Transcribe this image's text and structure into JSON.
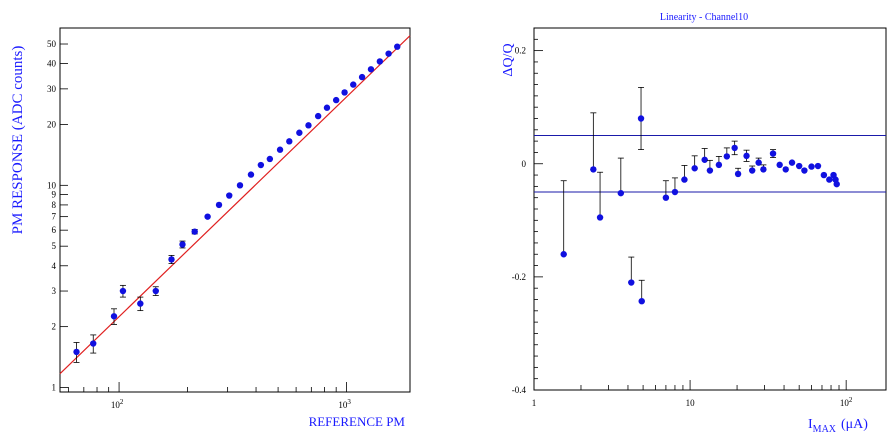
{
  "chart_data": [
    {
      "type": "scatter",
      "title": "",
      "xlabel": "REFERENCE PM",
      "ylabel": "PM RESPONSE (ADC counts)",
      "xscale": "log",
      "yscale": "log",
      "xlim": [
        55,
        1900
      ],
      "ylim": [
        0.95,
        60
      ],
      "grid": false,
      "fit_line": {
        "color": "#e02020",
        "x": [
          55,
          1900
        ],
        "y": [
          1.17,
          55.0
        ]
      },
      "x_ticks": [
        {
          "value": 100,
          "label": "10",
          "exp": "2"
        },
        {
          "value": 1000,
          "label": "10",
          "exp": "3"
        }
      ],
      "y_ticks": [
        1,
        2,
        3,
        4,
        5,
        6,
        7,
        8,
        9,
        10,
        20,
        30,
        40,
        50
      ],
      "series": [
        {
          "marker_color": "#1010e0",
          "points": [
            {
              "x": 65,
              "y": 1.5,
              "err": 0.17
            },
            {
              "x": 77,
              "y": 1.65,
              "err": 0.17
            },
            {
              "x": 95,
              "y": 2.25,
              "err": 0.2
            },
            {
              "x": 104,
              "y": 3.0,
              "err": 0.2
            },
            {
              "x": 124,
              "y": 2.6,
              "err": 0.2
            },
            {
              "x": 145,
              "y": 3.0,
              "err": 0.15
            },
            {
              "x": 170,
              "y": 4.3,
              "err": 0.2
            },
            {
              "x": 190,
              "y": 5.1,
              "err": 0.2
            },
            {
              "x": 215,
              "y": 5.9,
              "err": 0.15
            },
            {
              "x": 245,
              "y": 7.0,
              "err": 0
            },
            {
              "x": 275,
              "y": 8.0,
              "err": 0
            },
            {
              "x": 305,
              "y": 8.9,
              "err": 0
            },
            {
              "x": 340,
              "y": 10.0,
              "err": 0
            },
            {
              "x": 380,
              "y": 11.3,
              "err": 0
            },
            {
              "x": 420,
              "y": 12.6,
              "err": 0
            },
            {
              "x": 460,
              "y": 13.5,
              "err": 0
            },
            {
              "x": 510,
              "y": 15.0,
              "err": 0
            },
            {
              "x": 560,
              "y": 16.5,
              "err": 0
            },
            {
              "x": 620,
              "y": 18.2,
              "err": 0
            },
            {
              "x": 680,
              "y": 19.8,
              "err": 0
            },
            {
              "x": 750,
              "y": 22.0,
              "err": 0
            },
            {
              "x": 820,
              "y": 24.2,
              "err": 0
            },
            {
              "x": 900,
              "y": 26.4,
              "err": 0
            },
            {
              "x": 980,
              "y": 28.8,
              "err": 0
            },
            {
              "x": 1070,
              "y": 31.5,
              "err": 0
            },
            {
              "x": 1170,
              "y": 34.3,
              "err": 0
            },
            {
              "x": 1280,
              "y": 37.5,
              "err": 0
            },
            {
              "x": 1400,
              "y": 41.0,
              "err": 0
            },
            {
              "x": 1530,
              "y": 44.8,
              "err": 0
            },
            {
              "x": 1670,
              "y": 48.5,
              "err": 0
            }
          ]
        }
      ]
    },
    {
      "type": "scatter",
      "title": "Linearity - Channel10",
      "xlabel": "I",
      "xlabel_sub": "MAX",
      "xlabel_unit": "(μA)",
      "ylabel": "ΔQ/Q",
      "xscale": "log",
      "yscale": "linear",
      "xlim": [
        1,
        180
      ],
      "ylim": [
        -0.4,
        0.24
      ],
      "grid": false,
      "reference_lines": [
        0.05,
        -0.05
      ],
      "x_ticks": [
        {
          "value": 1,
          "label": "1",
          "exp": ""
        },
        {
          "value": 10,
          "label": "10",
          "exp": ""
        },
        {
          "value": 100,
          "label": "10",
          "exp": "2"
        }
      ],
      "y_ticks": [
        {
          "value": 0.2,
          "label": "0.2"
        },
        {
          "value": 0,
          "label": "0"
        },
        {
          "value": -0.2,
          "label": "-0.2"
        },
        {
          "value": -0.4,
          "label": "-0.4"
        }
      ],
      "series": [
        {
          "marker_color": "#1010e0",
          "points": [
            {
              "x": 1.55,
              "y": -0.16,
              "err": 0.13
            },
            {
              "x": 2.4,
              "y": -0.01,
              "err": 0.1
            },
            {
              "x": 2.65,
              "y": -0.095,
              "err": 0.08
            },
            {
              "x": 3.6,
              "y": -0.052,
              "err": 0.062
            },
            {
              "x": 4.2,
              "y": -0.21,
              "err": 0.045
            },
            {
              "x": 4.85,
              "y": 0.08,
              "err": 0.055
            },
            {
              "x": 4.9,
              "y": -0.243,
              "err": 0.037
            },
            {
              "x": 7.0,
              "y": -0.06,
              "err": 0.03
            },
            {
              "x": 8.0,
              "y": -0.05,
              "err": 0.025
            },
            {
              "x": 9.2,
              "y": -0.028,
              "err": 0.025
            },
            {
              "x": 10.7,
              "y": -0.008,
              "err": 0.022
            },
            {
              "x": 12.4,
              "y": 0.007,
              "err": 0.02
            },
            {
              "x": 13.4,
              "y": -0.012,
              "err": 0.018
            },
            {
              "x": 15.3,
              "y": -0.002,
              "err": 0.015
            },
            {
              "x": 17.2,
              "y": 0.013,
              "err": 0.015
            },
            {
              "x": 19.3,
              "y": 0.028,
              "err": 0.012
            },
            {
              "x": 20.3,
              "y": -0.018,
              "err": 0.01
            },
            {
              "x": 23.0,
              "y": 0.014,
              "err": 0.01
            },
            {
              "x": 25.0,
              "y": -0.012,
              "err": 0.008
            },
            {
              "x": 27.5,
              "y": 0.002,
              "err": 0.008
            },
            {
              "x": 29.5,
              "y": -0.01,
              "err": 0.008
            },
            {
              "x": 34.0,
              "y": 0.018,
              "err": 0.007
            },
            {
              "x": 37.5,
              "y": -0.002,
              "err": 0
            },
            {
              "x": 41.0,
              "y": -0.01,
              "err": 0
            },
            {
              "x": 45.0,
              "y": 0.002,
              "err": 0
            },
            {
              "x": 50.0,
              "y": -0.004,
              "err": 0
            },
            {
              "x": 54.0,
              "y": -0.012,
              "err": 0
            },
            {
              "x": 60.0,
              "y": -0.005,
              "err": 0
            },
            {
              "x": 66.0,
              "y": -0.004,
              "err": 0
            },
            {
              "x": 72.0,
              "y": -0.02,
              "err": 0
            },
            {
              "x": 78.0,
              "y": -0.028,
              "err": 0
            },
            {
              "x": 83.0,
              "y": -0.02,
              "err": 0
            },
            {
              "x": 85.5,
              "y": -0.028,
              "err": 0
            },
            {
              "x": 87.0,
              "y": -0.036,
              "err": 0
            }
          ]
        }
      ]
    }
  ]
}
